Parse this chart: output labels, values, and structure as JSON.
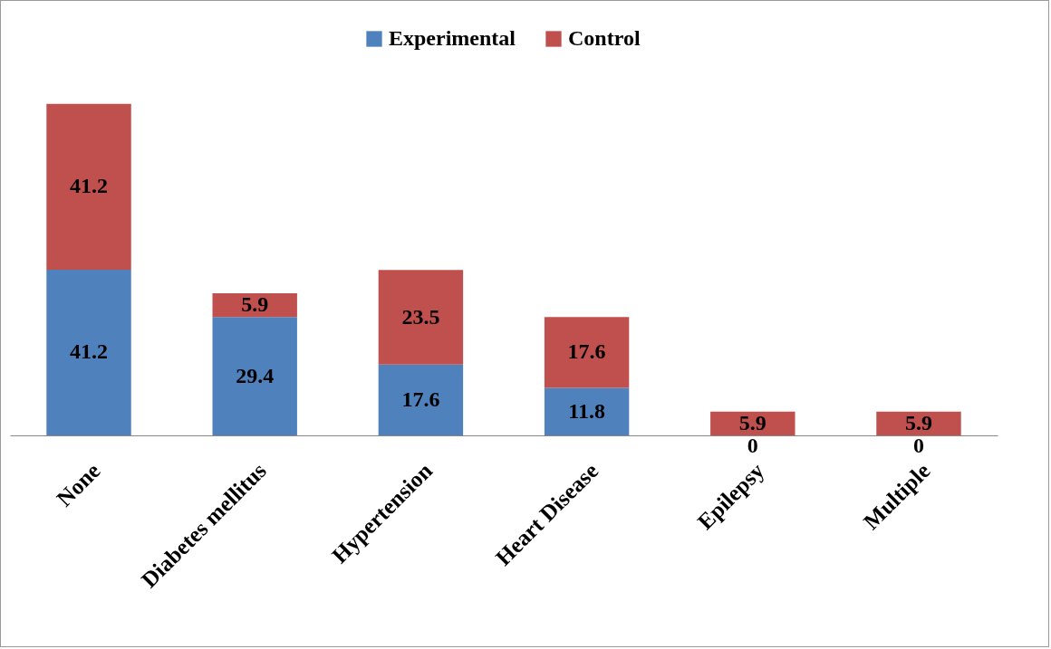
{
  "chart_data": {
    "type": "bar",
    "stacked": true,
    "categories": [
      "None",
      "Diabetes mellitus",
      "Hypertension",
      "Heart Disease",
      "Epilepsy",
      "Multiple"
    ],
    "series": [
      {
        "name": "Experimental",
        "color": "#4f81bd",
        "values": [
          41.2,
          29.4,
          17.6,
          11.8,
          0,
          0
        ]
      },
      {
        "name": "Control",
        "color": "#c0504d",
        "values": [
          41.2,
          5.9,
          23.5,
          17.6,
          5.9,
          5.9
        ]
      }
    ],
    "data_labels": true,
    "legend": "top"
  }
}
